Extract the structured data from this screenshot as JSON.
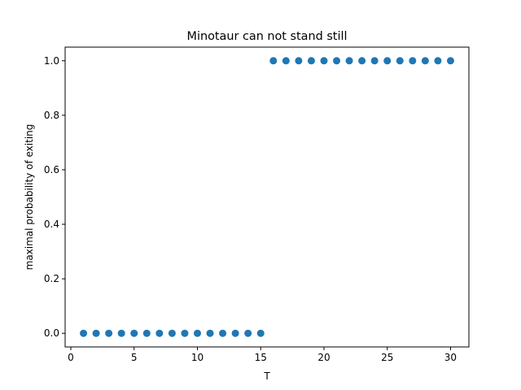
{
  "chart_data": {
    "type": "scatter",
    "title": "Minotaur can not stand still",
    "xlabel": "T",
    "ylabel": "maximal probability of exiting",
    "xlim": [
      -0.45,
      31.45
    ],
    "ylim": [
      -0.05,
      1.05
    ],
    "xticks": [
      0,
      5,
      10,
      15,
      20,
      25,
      30
    ],
    "xtick_labels": [
      "0",
      "5",
      "10",
      "15",
      "20",
      "25",
      "30"
    ],
    "yticks": [
      0.0,
      0.2,
      0.4,
      0.6,
      0.8,
      1.0
    ],
    "ytick_labels": [
      "0.0",
      "0.2",
      "0.4",
      "0.6",
      "0.8",
      "1.0"
    ],
    "grid": false,
    "legend": "none",
    "marker_color": "#1f77b4",
    "x": [
      1,
      2,
      3,
      4,
      5,
      6,
      7,
      8,
      9,
      10,
      11,
      12,
      13,
      14,
      15,
      16,
      17,
      18,
      19,
      20,
      21,
      22,
      23,
      24,
      25,
      26,
      27,
      28,
      29,
      30
    ],
    "y": [
      0,
      0,
      0,
      0,
      0,
      0,
      0,
      0,
      0,
      0,
      0,
      0,
      0,
      0,
      0,
      1,
      1,
      1,
      1,
      1,
      1,
      1,
      1,
      1,
      1,
      1,
      1,
      1,
      1,
      1
    ]
  }
}
